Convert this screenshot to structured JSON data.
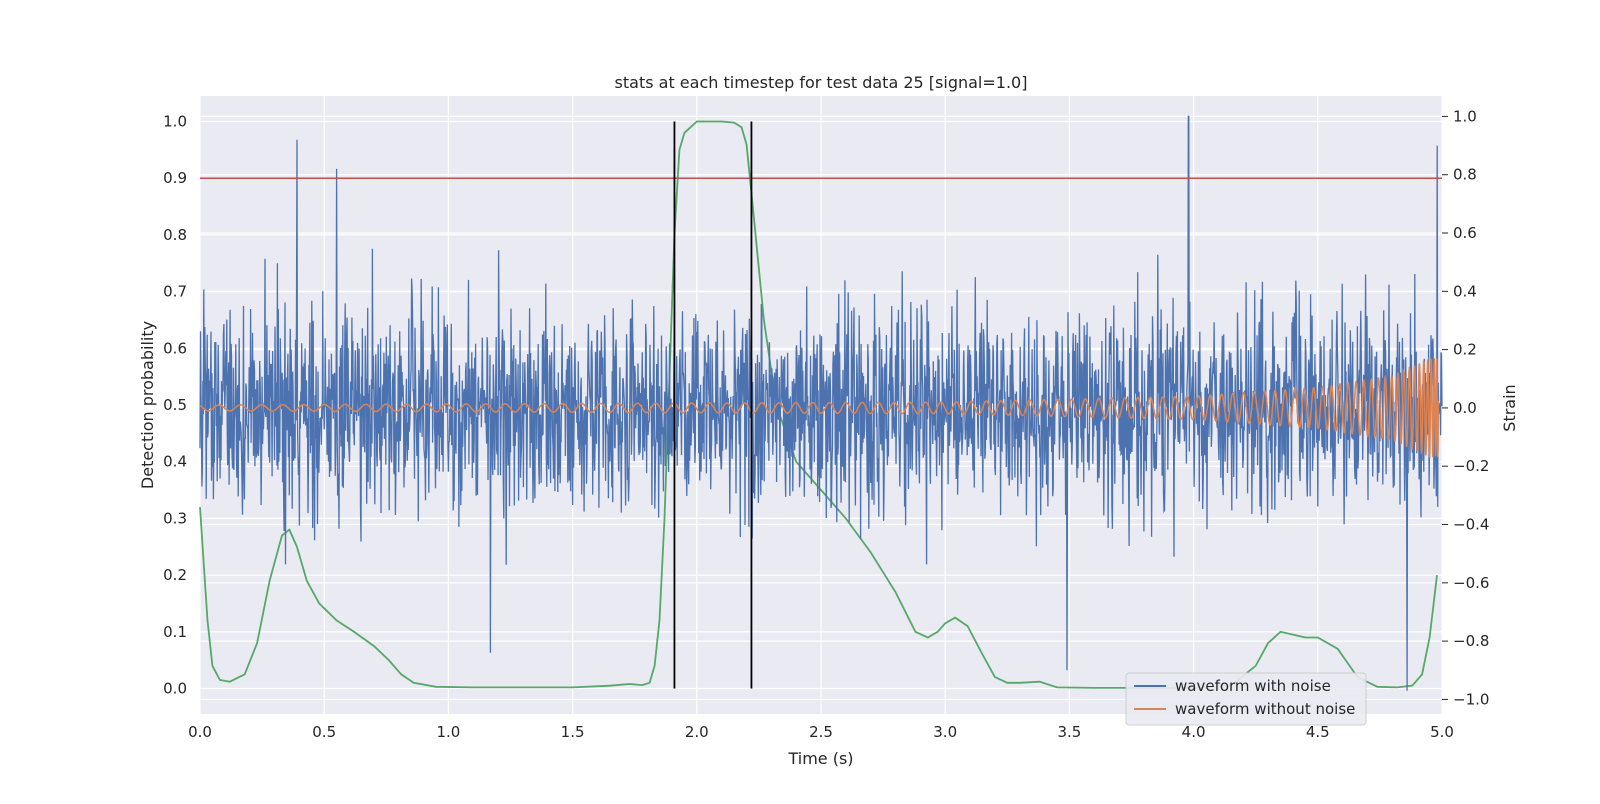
{
  "chart_data": {
    "type": "line",
    "title": "stats at each timestep for test data 25 [signal=1.0]",
    "xlabel": "Time (s)",
    "ylabel": "Detection probability",
    "y2label": "Strain",
    "xlim": [
      0.0,
      5.0
    ],
    "ylim": [
      -0.045,
      1.045
    ],
    "y2lim": [
      -1.05,
      1.07
    ],
    "grid": true,
    "legend_placement": "lower-right",
    "x_ticks": [
      "0.0",
      "0.5",
      "1.0",
      "1.5",
      "2.0",
      "2.5",
      "3.0",
      "3.5",
      "4.0",
      "4.5",
      "5.0"
    ],
    "y_ticks": [
      "0.0",
      "0.1",
      "0.2",
      "0.3",
      "0.4",
      "0.5",
      "0.6",
      "0.7",
      "0.8",
      "0.9",
      "1.0"
    ],
    "y2_ticks": [
      "−1.0",
      "−0.8",
      "−0.6",
      "−0.4",
      "−0.2",
      "0.0",
      "0.2",
      "0.4",
      "0.6",
      "0.8",
      "1.0"
    ],
    "threshold": {
      "y": 0.9,
      "color": "#c44e52"
    },
    "detection_window": {
      "x_start": 1.91,
      "x_end": 2.22,
      "color": "#000000"
    },
    "series": [
      {
        "name": "waveform with noise",
        "axis": "right",
        "color": "#4c72b0",
        "noise_amplitude_strain": 0.3,
        "peak_values": [
          {
            "x": 0.39,
            "y": 0.92
          },
          {
            "x": 0.55,
            "y": 0.82
          },
          {
            "x": 3.98,
            "y": 1.0
          },
          {
            "x": 4.98,
            "y": 0.9
          },
          {
            "x": 1.17,
            "y": -0.84
          },
          {
            "x": 3.49,
            "y": -0.9
          },
          {
            "x": 4.86,
            "y": -0.97
          }
        ]
      },
      {
        "name": "waveform without noise",
        "axis": "right",
        "color": "#dd8452",
        "description_points": [
          {
            "x": 0.0,
            "amplitude": 0.01
          },
          {
            "x": 3.0,
            "amplitude": 0.02
          },
          {
            "x": 4.0,
            "amplitude": 0.04
          },
          {
            "x": 4.5,
            "amplitude": 0.07
          },
          {
            "x": 4.8,
            "amplitude": 0.11
          },
          {
            "x": 4.95,
            "amplitude": 0.17
          }
        ]
      },
      {
        "axis": "left",
        "color": "#55a868",
        "x": [
          0.0,
          0.03,
          0.05,
          0.08,
          0.12,
          0.18,
          0.23,
          0.28,
          0.33,
          0.36,
          0.39,
          0.43,
          0.48,
          0.55,
          0.62,
          0.7,
          0.76,
          0.81,
          0.86,
          0.95,
          1.1,
          1.3,
          1.5,
          1.65,
          1.73,
          1.78,
          1.81,
          1.83,
          1.85,
          1.87,
          1.89,
          1.91,
          1.93,
          1.95,
          2.0,
          2.1,
          2.15,
          2.18,
          2.2,
          2.23,
          2.27,
          2.32,
          2.4,
          2.5,
          2.6,
          2.7,
          2.8,
          2.88,
          2.93,
          2.97,
          3.0,
          3.04,
          3.09,
          3.15,
          3.2,
          3.25,
          3.3,
          3.38,
          3.45,
          3.6,
          3.8,
          4.0,
          4.15,
          4.25,
          4.3,
          4.35,
          4.4,
          4.45,
          4.5,
          4.58,
          4.66,
          4.74,
          4.82,
          4.88,
          4.92,
          4.95,
          4.98
        ],
        "y": [
          0.32,
          0.12,
          0.04,
          0.015,
          0.012,
          0.025,
          0.08,
          0.19,
          0.27,
          0.28,
          0.25,
          0.19,
          0.15,
          0.12,
          0.1,
          0.075,
          0.05,
          0.025,
          0.01,
          0.003,
          0.002,
          0.002,
          0.002,
          0.005,
          0.008,
          0.006,
          0.01,
          0.04,
          0.12,
          0.3,
          0.55,
          0.8,
          0.95,
          0.98,
          1.0,
          1.0,
          0.998,
          0.99,
          0.96,
          0.83,
          0.65,
          0.5,
          0.4,
          0.35,
          0.3,
          0.24,
          0.17,
          0.1,
          0.09,
          0.1,
          0.115,
          0.125,
          0.11,
          0.06,
          0.02,
          0.01,
          0.01,
          0.012,
          0.002,
          0.001,
          0.001,
          0.001,
          0.005,
          0.04,
          0.08,
          0.1,
          0.095,
          0.09,
          0.09,
          0.07,
          0.02,
          0.003,
          0.002,
          0.005,
          0.025,
          0.09,
          0.2
        ]
      }
    ]
  }
}
